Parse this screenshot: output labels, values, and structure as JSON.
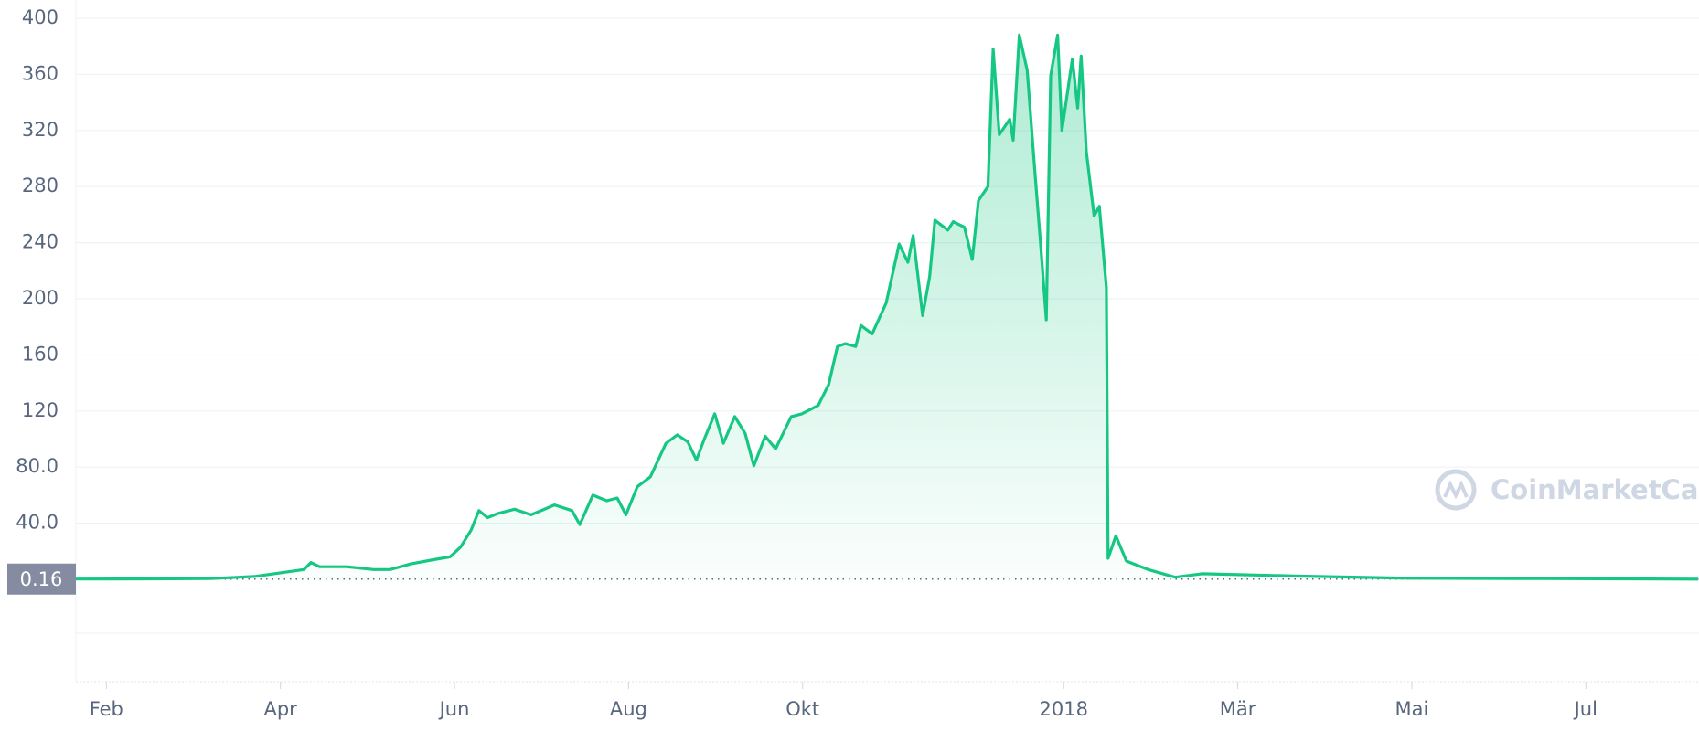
{
  "chart_data": {
    "type": "line",
    "watermark": "CoinMarketCap",
    "color": "#16c784",
    "last_price": 0.16,
    "grid": true,
    "x": [
      0.65,
      1.5,
      2.2,
      2.7,
      3.27,
      3.35,
      3.45,
      3.76,
      4.07,
      4.26,
      4.5,
      4.76,
      4.95,
      5.07,
      5.19,
      5.28,
      5.38,
      5.5,
      5.69,
      5.88,
      6.15,
      6.35,
      6.44,
      6.59,
      6.75,
      6.87,
      6.97,
      7.1,
      7.25,
      7.43,
      7.56,
      7.68,
      7.78,
      7.87,
      7.99,
      8.09,
      8.22,
      8.34,
      8.44,
      8.57,
      8.69,
      8.87,
      8.99,
      9.18,
      9.3,
      9.4,
      9.49,
      9.61,
      9.67,
      9.8,
      9.96,
      10.11,
      10.21,
      10.27,
      10.38,
      10.46,
      10.52,
      10.67,
      10.73,
      10.86,
      10.95,
      11.02,
      11.13,
      11.19,
      11.26,
      11.38,
      11.42,
      11.49,
      11.58,
      11.67,
      11.73,
      11.8,
      11.85,
      11.93,
      11.98,
      12.1,
      12.16,
      12.2,
      12.26,
      12.35,
      12.41,
      12.49,
      12.51,
      12.6,
      12.72,
      12.97,
      13.28,
      13.59,
      14.71,
      15.96,
      17.5,
      19.29
    ],
    "values": [
      0.2,
      0.3,
      0.5,
      2,
      7,
      12,
      9,
      9,
      7,
      7,
      11,
      14,
      16,
      23,
      35,
      49,
      44,
      47,
      50,
      46,
      53,
      49,
      39,
      60,
      56,
      58,
      46,
      66,
      73,
      97,
      103,
      98,
      85,
      100,
      118,
      97,
      116,
      104,
      81,
      102,
      93,
      116,
      118,
      124,
      139,
      166,
      168,
      166,
      181,
      175,
      197,
      239,
      226,
      245,
      188,
      216,
      256,
      249,
      255,
      251,
      228,
      270,
      280,
      378,
      317,
      328,
      313,
      388,
      363,
      290,
      243,
      185,
      359,
      388,
      320,
      371,
      336,
      373,
      305,
      259,
      266,
      208,
      15,
      31,
      13,
      7,
      1.5,
      4,
      2.3,
      0.8,
      0.5,
      0.16
    ],
    "xlim": [
      0.65,
      19.3
    ],
    "xticks": [
      {
        "value": 1,
        "label": "Feb"
      },
      {
        "value": 3,
        "label": "Apr"
      },
      {
        "value": 5,
        "label": "Jun"
      },
      {
        "value": 7,
        "label": "Aug"
      },
      {
        "value": 9,
        "label": "Okt"
      },
      {
        "value": 12,
        "label": "2018"
      },
      {
        "value": 14,
        "label": "Mär"
      },
      {
        "value": 16,
        "label": "Mai"
      },
      {
        "value": 18,
        "label": "Jul"
      }
    ],
    "ylim": [
      0,
      400
    ],
    "yticks": [
      {
        "value": 40,
        "label": "40.0"
      },
      {
        "value": 80,
        "label": "80.0"
      },
      120,
      160,
      200,
      240,
      280,
      320,
      360,
      400
    ]
  }
}
